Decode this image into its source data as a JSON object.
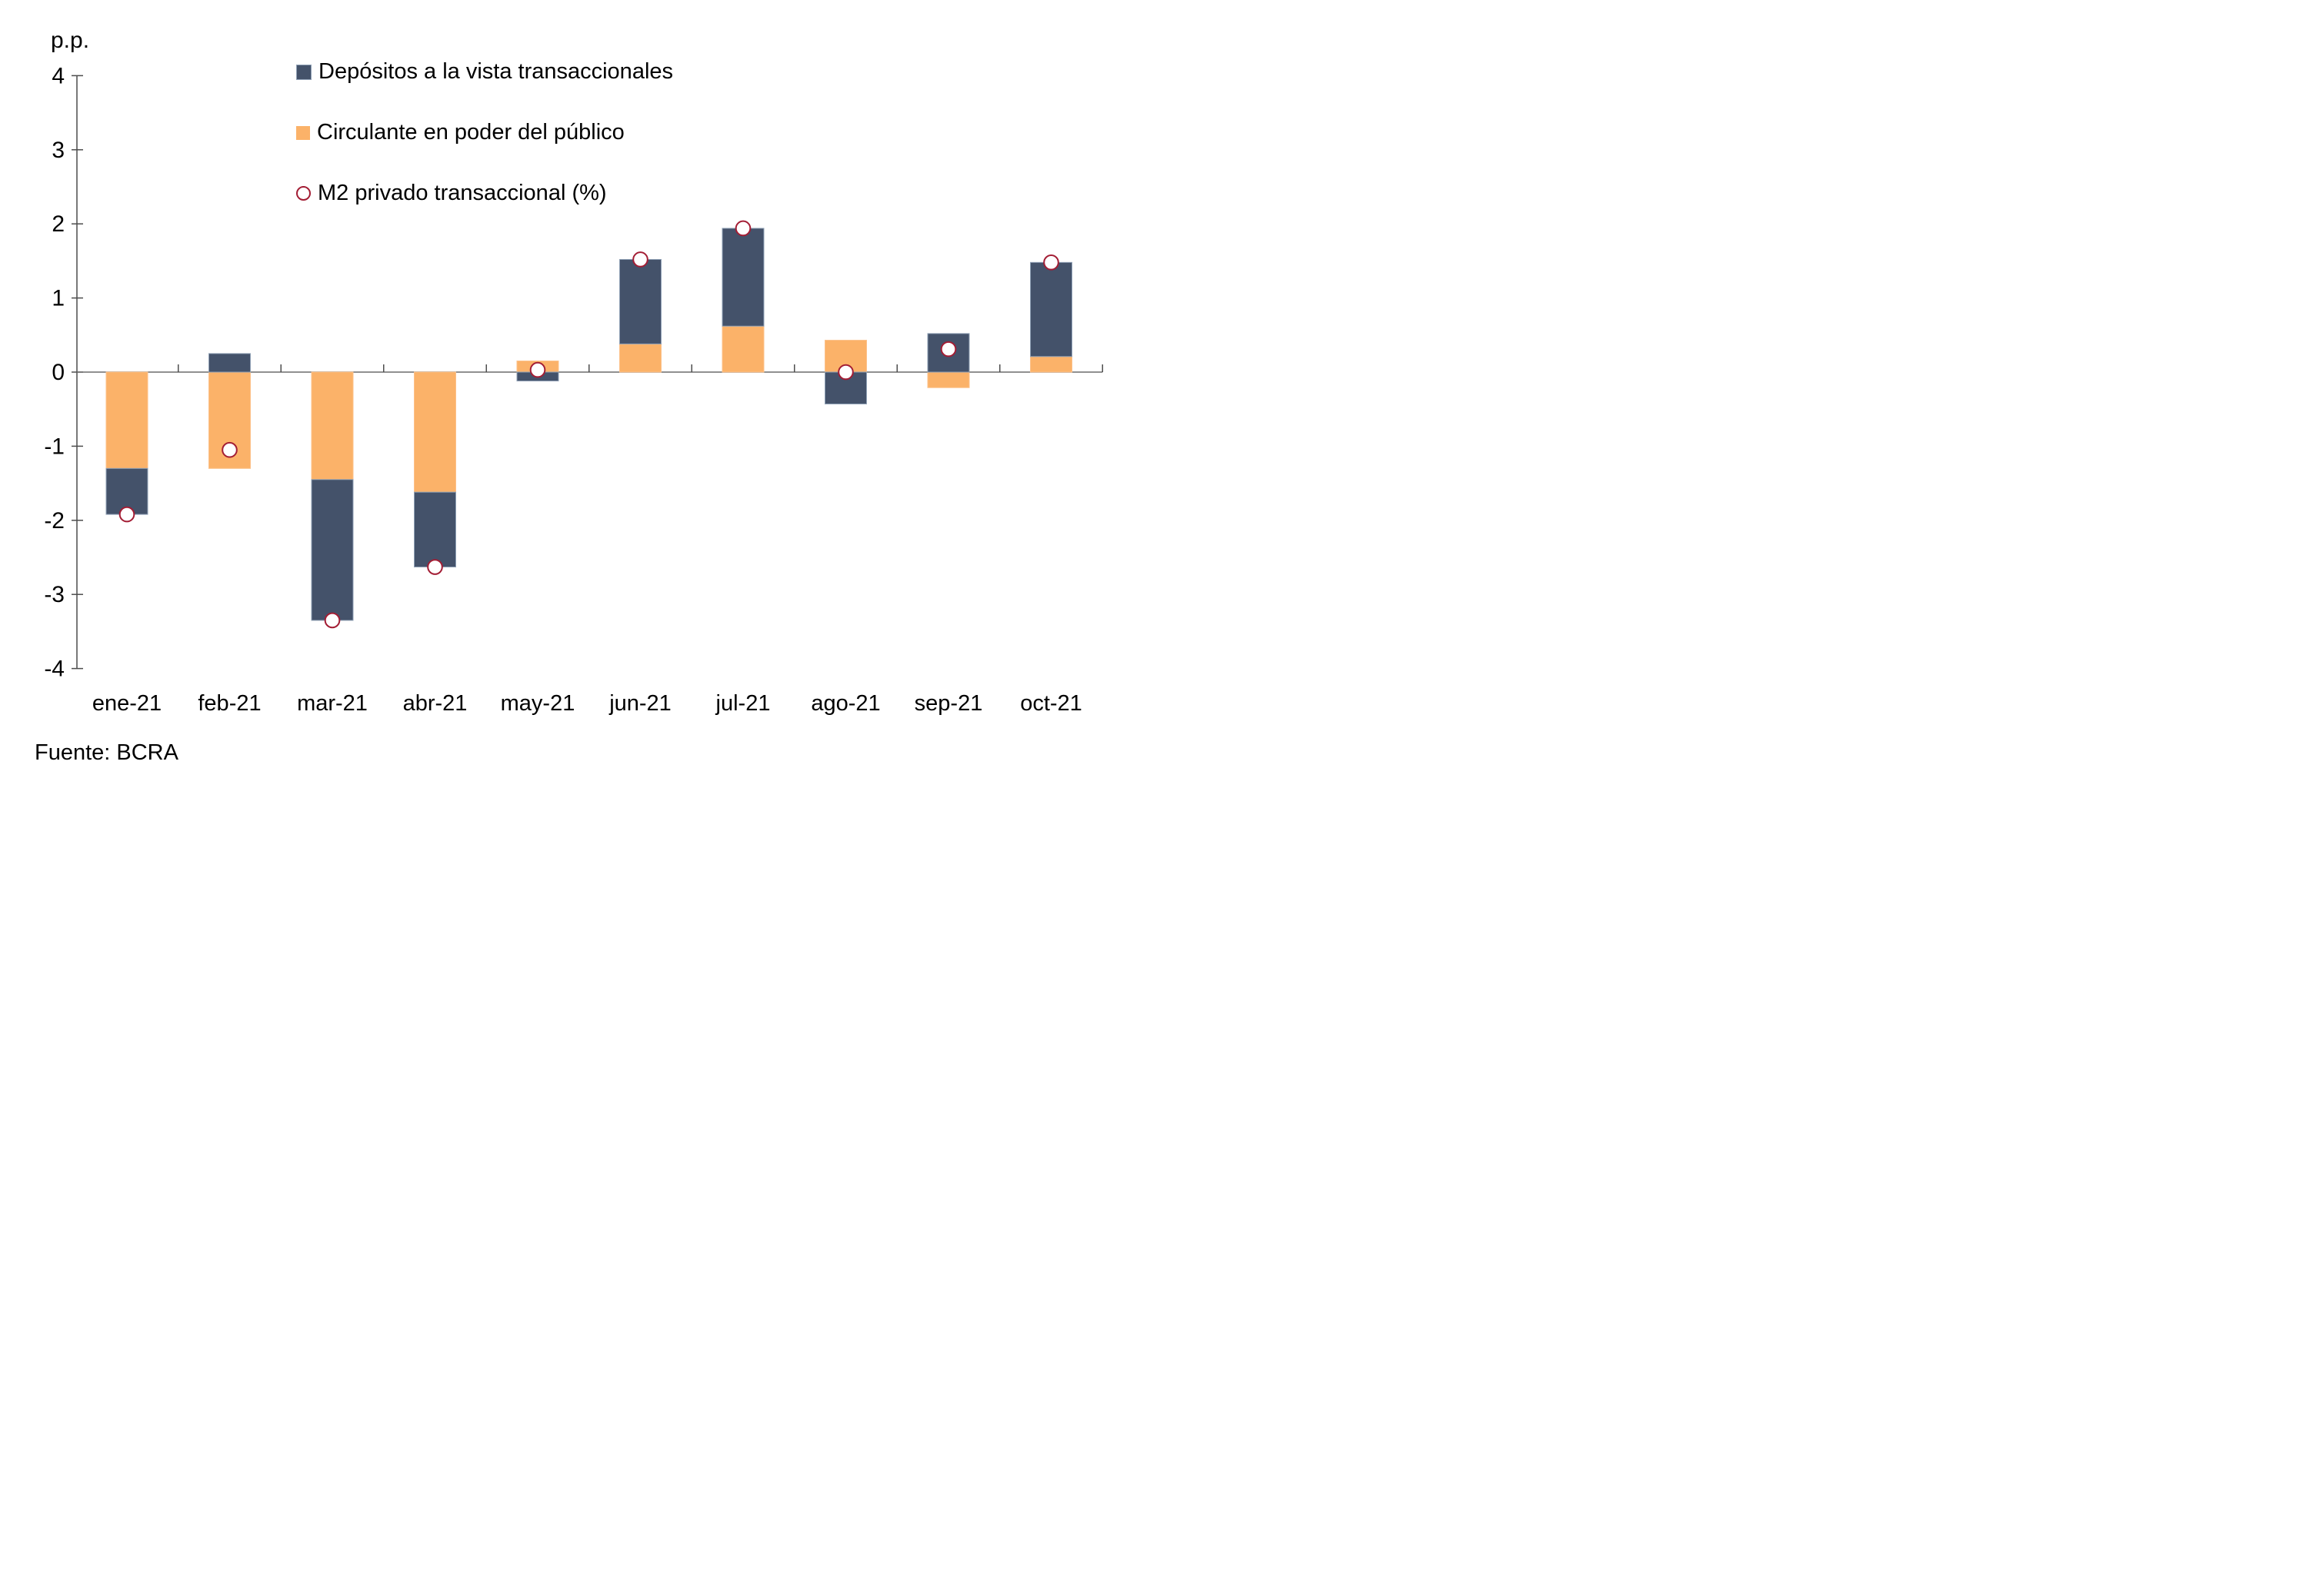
{
  "chart": {
    "y_unit_label": "p.p.",
    "source": "Fuente: BCRA",
    "legend": [
      {
        "label": "Depósitos a la vista transaccionales",
        "marker": "square",
        "series_key": "depositos"
      },
      {
        "label": "Circulante en poder del público",
        "marker": "square",
        "series_key": "circulante"
      },
      {
        "label": "M2 privado transaccional (%)",
        "marker": "circle-outline",
        "series_key": "m2"
      }
    ],
    "colors": {
      "depositos": "#44526A",
      "depositos_border": "#8FA0B5",
      "circulante": "#FBB269",
      "circulante_border": "#FCC189",
      "m2_stroke": "#A31D34",
      "m2_fill": "#FFFFFF",
      "x_axis_line": "#6B6B6B",
      "y_axis_line": "#4D4D4D",
      "tick": "#4D4D4D",
      "text": "#000000"
    }
  },
  "chart_data": {
    "type": "bar",
    "stacked": true,
    "title": "",
    "ylabel": "p.p.",
    "ylim": [
      -4,
      4
    ],
    "ytick_step": 1,
    "ytick_labels": [
      "4",
      "3",
      "2",
      "1",
      "0",
      "-1",
      "-2",
      "-3",
      "-4"
    ],
    "grid": false,
    "legend_position": "top-center",
    "categories": [
      "ene-21",
      "feb-21",
      "mar-21",
      "abr-21",
      "may-21",
      "jun-21",
      "jul-21",
      "ago-21",
      "sep-21",
      "oct-21"
    ],
    "series": [
      {
        "name": "Circulante en poder del público",
        "key": "circulante",
        "render": "bar",
        "values": [
          -1.3,
          -1.3,
          -1.45,
          -1.62,
          0.15,
          0.38,
          0.62,
          0.43,
          -0.21,
          0.21
        ]
      },
      {
        "name": "Depósitos a la vista transaccionales",
        "key": "depositos",
        "render": "bar",
        "values": [
          -0.62,
          0.25,
          -1.9,
          -1.01,
          -0.12,
          1.14,
          1.32,
          -0.43,
          0.52,
          1.27
        ]
      },
      {
        "name": "M2 privado transaccional (%)",
        "key": "m2",
        "render": "scatter",
        "values": [
          -1.92,
          -1.05,
          -3.35,
          -2.63,
          0.03,
          1.52,
          1.94,
          0.0,
          0.31,
          1.48
        ]
      }
    ]
  }
}
